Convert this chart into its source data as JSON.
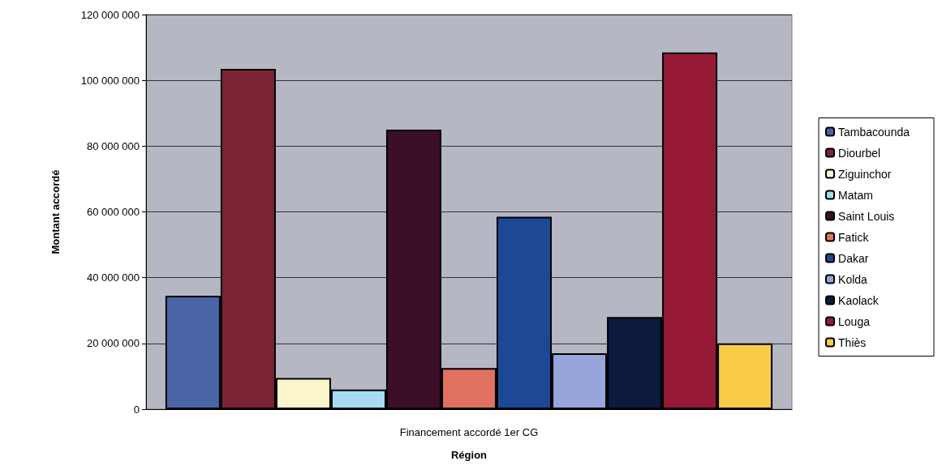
{
  "chart_data": {
    "type": "bar",
    "xlabel": "Région",
    "ylabel": "Montant accordé",
    "categories": [
      "Financement accordé 1er CG"
    ],
    "series": [
      {
        "name": "Tambacounda",
        "color": "#4a64a8",
        "values": [
          34500000
        ]
      },
      {
        "name": "Diourbel",
        "color": "#7a2436",
        "values": [
          103500000
        ]
      },
      {
        "name": "Ziguinchor",
        "color": "#fbf6cc",
        "values": [
          9500000
        ]
      },
      {
        "name": "Matam",
        "color": "#a6dcf2",
        "values": [
          6000000
        ]
      },
      {
        "name": "Saint Louis",
        "color": "#3c0e28",
        "values": [
          85000000
        ]
      },
      {
        "name": "Fatick",
        "color": "#e07060",
        "values": [
          12500000
        ]
      },
      {
        "name": "Dakar",
        "color": "#1c4896",
        "values": [
          58500000
        ]
      },
      {
        "name": "Kolda",
        "color": "#98a4dc",
        "values": [
          17000000
        ]
      },
      {
        "name": "Kaolack",
        "color": "#0c1a40",
        "values": [
          28000000
        ]
      },
      {
        "name": "Louga",
        "color": "#961a36",
        "values": [
          108500000
        ]
      },
      {
        "name": "Thiès",
        "color": "#f8cc48",
        "values": [
          20000000
        ]
      }
    ],
    "ylim": [
      0,
      120000000
    ],
    "yticks": [
      0,
      20000000,
      40000000,
      60000000,
      80000000,
      100000000,
      120000000
    ],
    "grid": "y",
    "legend": "right"
  }
}
